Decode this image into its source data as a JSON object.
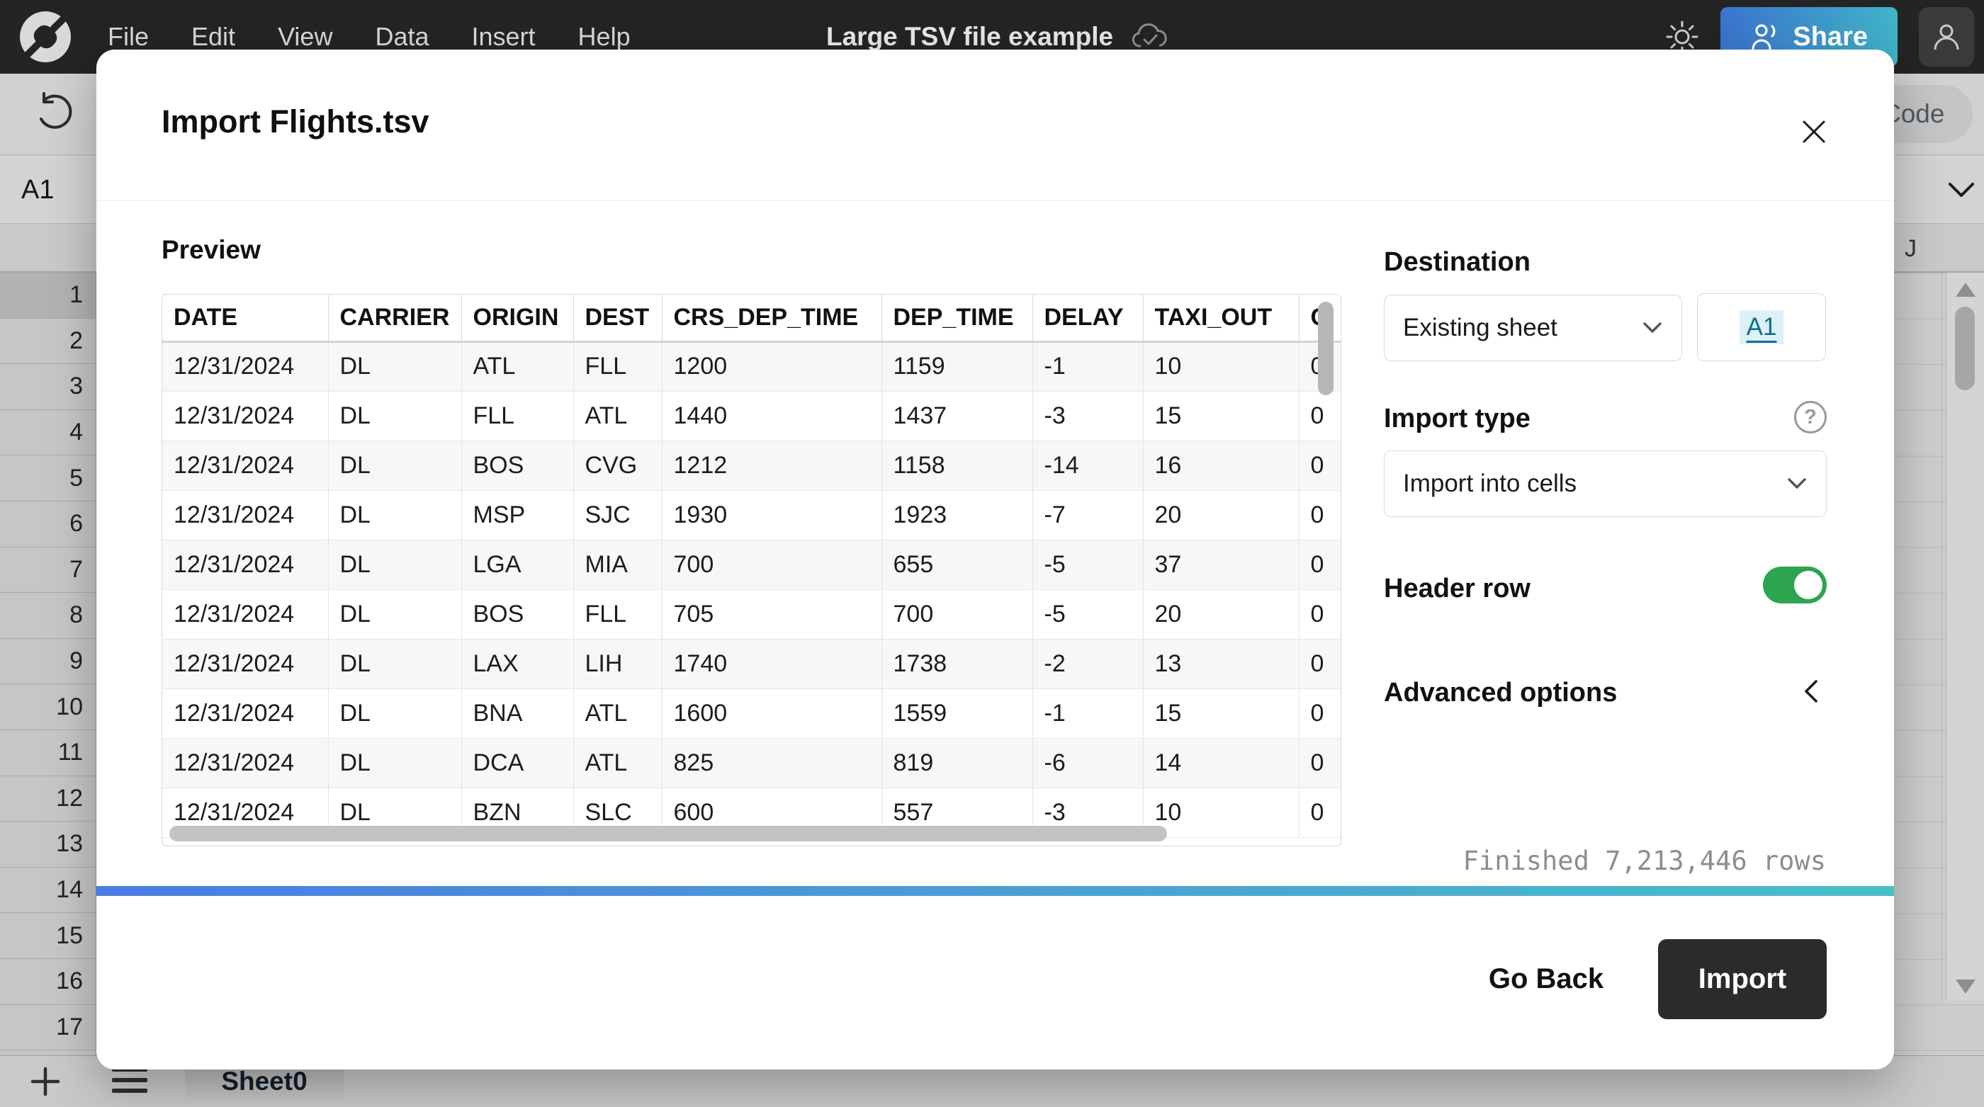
{
  "topbar": {
    "menu": [
      "File",
      "Edit",
      "View",
      "Data",
      "Insert",
      "Help"
    ],
    "title": "Large TSV file example",
    "share_label": "Share"
  },
  "background": {
    "name_box": "A1",
    "code_button": "Code",
    "column_header": "J",
    "row_numbers": [
      "1",
      "2",
      "3",
      "4",
      "5",
      "6",
      "7",
      "8",
      "9",
      "10",
      "11",
      "12",
      "13",
      "14",
      "15",
      "16",
      "17"
    ],
    "sheet_tab": "Sheet0"
  },
  "modal": {
    "title": "Import Flights.tsv",
    "preview_label": "Preview",
    "table": {
      "headers": [
        "DATE",
        "CARRIER",
        "ORIGIN",
        "DEST",
        "CRS_DEP_TIME",
        "DEP_TIME",
        "DELAY",
        "TAXI_OUT",
        "C"
      ],
      "rows": [
        [
          "12/31/2024",
          "DL",
          "ATL",
          "FLL",
          "1200",
          "1159",
          "-1",
          "10",
          "0"
        ],
        [
          "12/31/2024",
          "DL",
          "FLL",
          "ATL",
          "1440",
          "1437",
          "-3",
          "15",
          "0"
        ],
        [
          "12/31/2024",
          "DL",
          "BOS",
          "CVG",
          "1212",
          "1158",
          "-14",
          "16",
          "0"
        ],
        [
          "12/31/2024",
          "DL",
          "MSP",
          "SJC",
          "1930",
          "1923",
          "-7",
          "20",
          "0"
        ],
        [
          "12/31/2024",
          "DL",
          "LGA",
          "MIA",
          "700",
          "655",
          "-5",
          "37",
          "0"
        ],
        [
          "12/31/2024",
          "DL",
          "BOS",
          "FLL",
          "705",
          "700",
          "-5",
          "20",
          "0"
        ],
        [
          "12/31/2024",
          "DL",
          "LAX",
          "LIH",
          "1740",
          "1738",
          "-2",
          "13",
          "0"
        ],
        [
          "12/31/2024",
          "DL",
          "BNA",
          "ATL",
          "1600",
          "1559",
          "-1",
          "15",
          "0"
        ],
        [
          "12/31/2024",
          "DL",
          "DCA",
          "ATL",
          "825",
          "819",
          "-6",
          "14",
          "0"
        ],
        [
          "12/31/2024",
          "DL",
          "BZN",
          "SLC",
          "600",
          "557",
          "-3",
          "10",
          "0"
        ]
      ]
    },
    "destination": {
      "label": "Destination",
      "sheet_select": "Existing sheet",
      "cell_ref": "A1"
    },
    "import_type": {
      "label": "Import type",
      "value": "Import into cells"
    },
    "header_row": {
      "label": "Header row",
      "enabled": true
    },
    "advanced": {
      "label": "Advanced options"
    },
    "status": "Finished 7,213,446 rows",
    "footer": {
      "go_back": "Go Back",
      "import": "Import"
    }
  },
  "colors": {
    "share_gradient_start": "#3a74cf",
    "share_gradient_end": "#41b4c8",
    "toggle_on": "#2da44e",
    "progress_start": "#4a7de2",
    "progress_end": "#49bfc9",
    "link": "#0d7288",
    "import_button_bg": "#2b2b2b"
  }
}
